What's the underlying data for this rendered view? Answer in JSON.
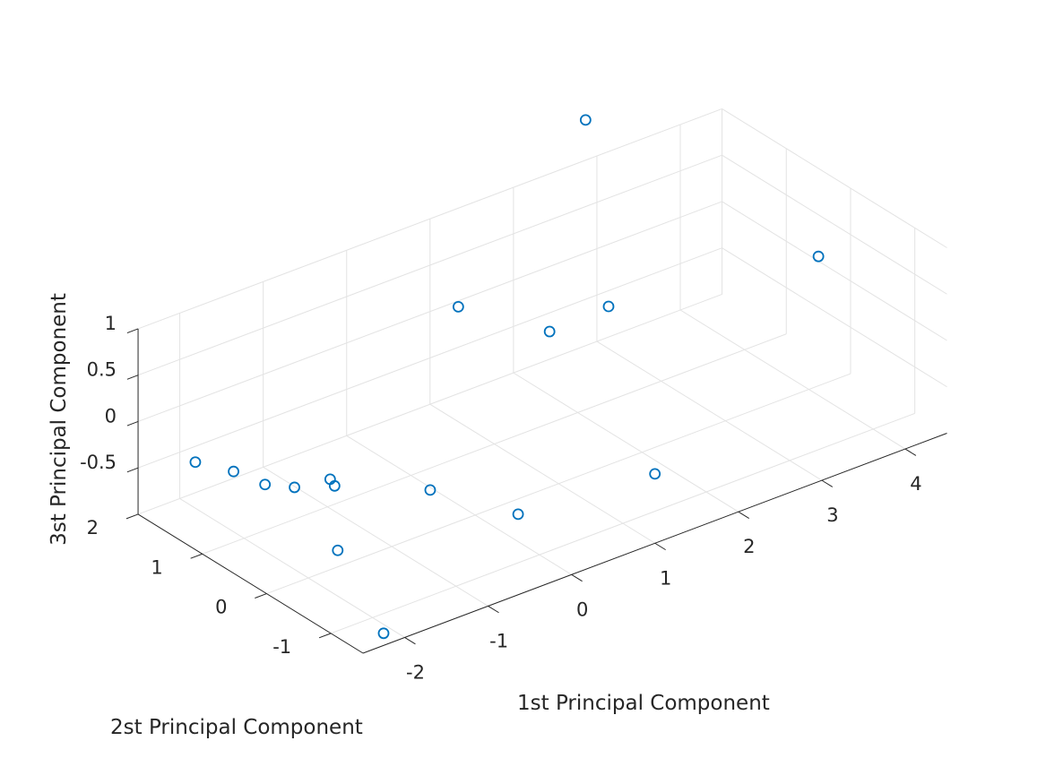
{
  "chart_data": {
    "type": "scatter3d",
    "title": "",
    "xlabel": "1st Principal Component",
    "ylabel": "2st Principal Component",
    "zlabel": "3st Principal Component",
    "xlim": [
      -2.5,
      4.5
    ],
    "ylim": [
      -1.5,
      2
    ],
    "zlim": [
      -1,
      1
    ],
    "xticks": [
      -2,
      -1,
      0,
      1,
      2,
      3,
      4
    ],
    "xtick_labels": [
      "-2",
      "-1",
      "0",
      "1",
      "2",
      "3",
      "4"
    ],
    "yticks": [
      -1,
      0,
      1,
      2
    ],
    "ytick_labels": [
      "-1",
      "0",
      "1",
      "2"
    ],
    "zticks": [
      -0.5,
      0,
      0.5,
      1
    ],
    "ztick_labels": [
      "-0.5",
      "0",
      "0.5",
      "1"
    ],
    "grid": true,
    "marker_color": "#0072BD",
    "points": [
      {
        "x": 2.31,
        "y": 1.28,
        "z": 1.93
      },
      {
        "x": 0.53,
        "y": 0.95,
        "z": 0.66
      },
      {
        "x": 1.47,
        "y": 0.75,
        "z": 0.16
      },
      {
        "x": 2.0,
        "y": 0.52,
        "z": 0.35
      },
      {
        "x": 3.83,
        "y": -0.37,
        "z": 0.65
      },
      {
        "x": 0.23,
        "y": -0.37,
        "z": -0.91
      },
      {
        "x": 1.5,
        "y": -0.85,
        "z": -0.7
      },
      {
        "x": -0.86,
        "y": 1.14,
        "z": -0.81
      },
      {
        "x": -0.2,
        "y": 0.44,
        "z": -0.85
      },
      {
        "x": -1.03,
        "y": 0.85,
        "z": -0.7
      },
      {
        "x": -1.38,
        "y": 1.02,
        "z": -0.67
      },
      {
        "x": -1.61,
        "y": 1.18,
        "z": -0.63
      },
      {
        "x": -1.81,
        "y": 1.41,
        "z": -0.52
      },
      {
        "x": -1.27,
        "y": 0.49,
        "z": -1.16
      },
      {
        "x": -2.06,
        "y": 1.68,
        "z": -0.45
      },
      {
        "x": -1.19,
        "y": -0.12,
        "z": -1.82
      }
    ]
  }
}
